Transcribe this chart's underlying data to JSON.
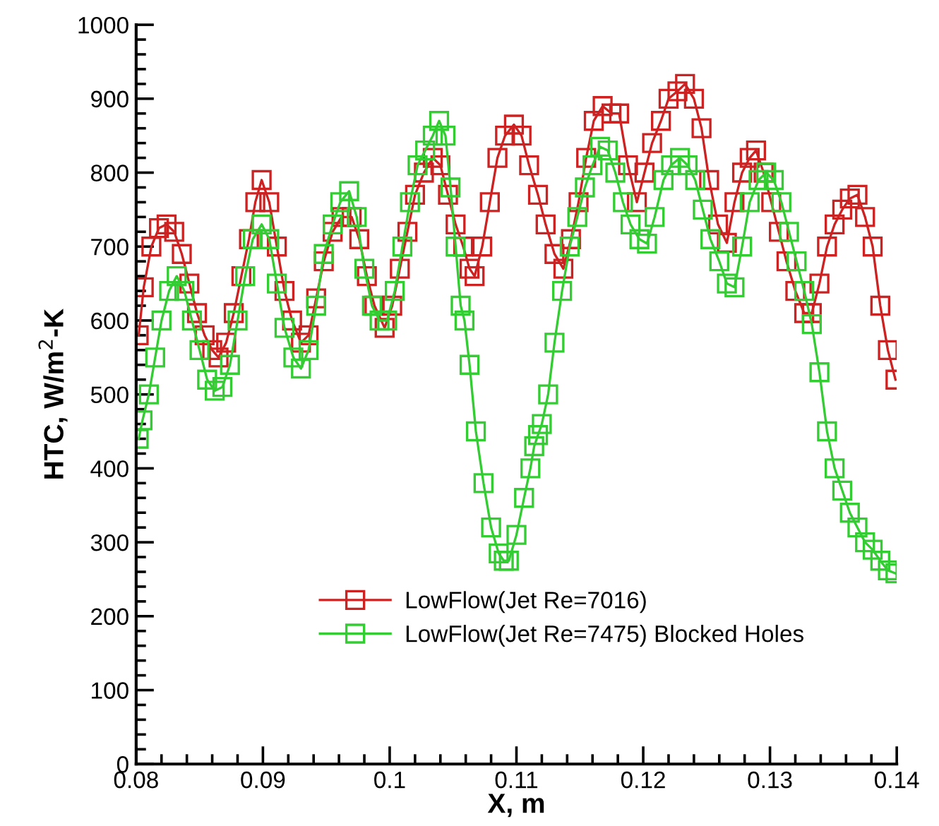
{
  "chart_data": {
    "type": "line",
    "xlabel": "X, m",
    "ylabel": "HTC, W/m$^{2}$-K",
    "xlim": [
      0.08,
      0.14
    ],
    "xticks": [
      0.08,
      0.09,
      0.1,
      0.11,
      0.12,
      0.13,
      0.14
    ],
    "ylim": [
      0,
      1000
    ],
    "yticks": [
      0,
      100,
      200,
      300,
      400,
      500,
      600,
      700,
      800,
      900,
      1000
    ],
    "grid": false,
    "legend": "bottom",
    "marker": "square",
    "line_style": "solid",
    "series": [
      {
        "name": "LowFlow(Jet Re=7016)",
        "color": "#cc2222",
        "x": [
          0.0802,
          0.0806,
          0.0812,
          0.0818,
          0.0824,
          0.083,
          0.0836,
          0.0842,
          0.0848,
          0.0854,
          0.086,
          0.0865,
          0.0871,
          0.0877,
          0.0883,
          0.0889,
          0.0894,
          0.0899,
          0.0905,
          0.0911,
          0.0917,
          0.0923,
          0.093,
          0.0936,
          0.0942,
          0.0948,
          0.0955,
          0.0962,
          0.097,
          0.0976,
          0.0982,
          0.0988,
          0.0996,
          0.1002,
          0.1008,
          0.1014,
          0.102,
          0.1027,
          0.1034,
          0.104,
          0.1046,
          0.1052,
          0.1058,
          0.1063,
          0.1067,
          0.1073,
          0.1079,
          0.1085,
          0.1091,
          0.1098,
          0.1104,
          0.111,
          0.1117,
          0.1123,
          0.113,
          0.1137,
          0.1143,
          0.1149,
          0.1155,
          0.1161,
          0.1168,
          0.1175,
          0.1181,
          0.1188,
          0.1195,
          0.1201,
          0.1207,
          0.1214,
          0.122,
          0.1227,
          0.1233,
          0.124,
          0.1246,
          0.1252,
          0.1259,
          0.1266,
          0.1272,
          0.1278,
          0.1284,
          0.1289,
          0.1295,
          0.1301,
          0.1307,
          0.1313,
          0.132,
          0.1327,
          0.1333,
          0.1339,
          0.1345,
          0.1351,
          0.1357,
          0.1363,
          0.1369,
          0.1375,
          0.1381,
          0.1387,
          0.1393,
          0.1399
        ],
        "values": [
          580,
          645,
          700,
          725,
          730,
          720,
          690,
          650,
          610,
          580,
          560,
          550,
          570,
          610,
          660,
          710,
          760,
          790,
          760,
          700,
          640,
          600,
          570,
          580,
          630,
          680,
          720,
          740,
          740,
          710,
          660,
          620,
          590,
          620,
          670,
          720,
          770,
          800,
          820,
          810,
          770,
          730,
          700,
          670,
          660,
          700,
          760,
          820,
          850,
          865,
          850,
          810,
          770,
          730,
          690,
          670,
          710,
          760,
          820,
          870,
          890,
          880,
          880,
          810,
          760,
          800,
          840,
          870,
          900,
          910,
          920,
          900,
          860,
          790,
          730,
          705,
          760,
          800,
          820,
          830,
          800,
          760,
          720,
          680,
          640,
          610,
          610,
          650,
          700,
          730,
          750,
          765,
          770,
          740,
          700,
          620,
          560,
          520
        ]
      },
      {
        "name": "LowFlow(Jet Re=7475) Blocked Holes",
        "color": "#33cc33",
        "x": [
          0.0802,
          0.0805,
          0.081,
          0.0815,
          0.082,
          0.0826,
          0.0832,
          0.0838,
          0.0844,
          0.085,
          0.0856,
          0.0862,
          0.0868,
          0.0874,
          0.088,
          0.0886,
          0.0892,
          0.0899,
          0.0905,
          0.0911,
          0.0917,
          0.0924,
          0.093,
          0.0936,
          0.0942,
          0.0948,
          0.0955,
          0.0961,
          0.0968,
          0.0974,
          0.098,
          0.0986,
          0.0992,
          0.0998,
          0.1004,
          0.101,
          0.1016,
          0.1022,
          0.1028,
          0.1034,
          0.1039,
          0.1044,
          0.1048,
          0.1052,
          0.1056,
          0.1059,
          0.1063,
          0.1068,
          0.1074,
          0.108,
          0.1086,
          0.109,
          0.1094,
          0.11,
          0.1106,
          0.1111,
          0.1114,
          0.1117,
          0.112,
          0.1125,
          0.113,
          0.1136,
          0.1142,
          0.1148,
          0.1154,
          0.116,
          0.1166,
          0.1172,
          0.1178,
          0.1184,
          0.119,
          0.1197,
          0.1203,
          0.1209,
          0.1216,
          0.1222,
          0.1229,
          0.1235,
          0.1241,
          0.1247,
          0.1253,
          0.126,
          0.1266,
          0.1272,
          0.1278,
          0.1284,
          0.1291,
          0.1297,
          0.1303,
          0.1309,
          0.1315,
          0.1321,
          0.1327,
          0.1333,
          0.1339,
          0.1345,
          0.1351,
          0.1357,
          0.1363,
          0.1369,
          0.1375,
          0.1381,
          0.1387,
          0.1393,
          0.1399
        ],
        "values": [
          440,
          465,
          500,
          550,
          600,
          640,
          660,
          640,
          600,
          560,
          520,
          505,
          510,
          540,
          600,
          660,
          710,
          730,
          710,
          650,
          590,
          550,
          535,
          560,
          620,
          690,
          730,
          760,
          775,
          740,
          670,
          620,
          600,
          600,
          640,
          700,
          760,
          810,
          830,
          850,
          870,
          850,
          780,
          700,
          620,
          600,
          540,
          450,
          380,
          320,
          285,
          275,
          275,
          310,
          360,
          400,
          430,
          445,
          460,
          500,
          570,
          640,
          700,
          740,
          780,
          810,
          835,
          830,
          800,
          760,
          730,
          710,
          704,
          740,
          790,
          810,
          820,
          810,
          790,
          750,
          710,
          680,
          650,
          645,
          700,
          760,
          790,
          800,
          790,
          760,
          720,
          680,
          640,
          595,
          530,
          450,
          400,
          370,
          340,
          320,
          300,
          290,
          275,
          262,
          258
        ]
      }
    ]
  }
}
